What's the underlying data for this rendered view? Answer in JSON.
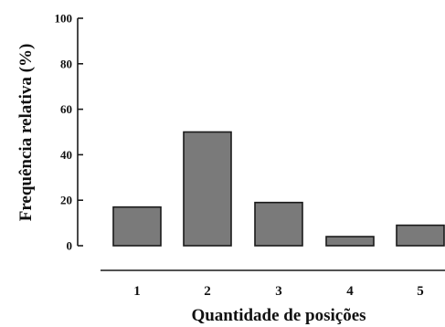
{
  "chart_data": {
    "type": "bar",
    "categories": [
      "1",
      "2",
      "3",
      "4",
      "5"
    ],
    "values": [
      17,
      50,
      19,
      4,
      9
    ],
    "xlabel": "Quantidade de posições",
    "ylabel": "Frequência relativa (%)",
    "ylim": [
      0,
      100
    ],
    "yticks": [
      "0",
      "20",
      "40",
      "60",
      "80",
      "100"
    ],
    "grid": false,
    "legend": "none",
    "colors": {
      "bar_fill": "#7a7a7a",
      "bar_stroke": "#1a1a1a",
      "axis": "#1a1a1a",
      "text": "#111111"
    }
  }
}
